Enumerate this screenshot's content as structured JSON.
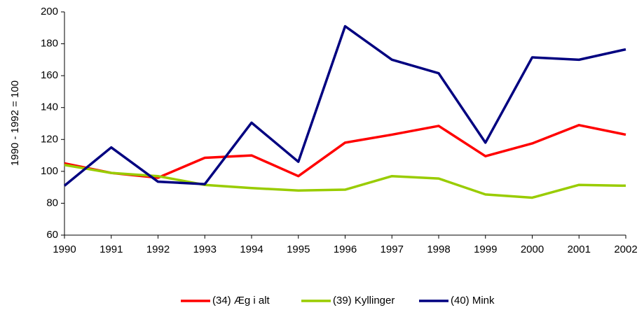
{
  "chart_data": {
    "type": "line",
    "y_label": "1990 - 1992 = 100",
    "x": [
      1990,
      1991,
      1992,
      1993,
      1994,
      1995,
      1996,
      1997,
      1998,
      1999,
      2000,
      2001,
      2002
    ],
    "series": [
      {
        "name": "(34) Æg i alt",
        "color": "#ff0000",
        "values": [
          105,
          99,
          96,
          108.5,
          110,
          97,
          118,
          123,
          128.5,
          109.5,
          117.5,
          129,
          123
        ]
      },
      {
        "name": "(39) Kyllinger",
        "color": "#99cc00",
        "values": [
          104,
          99,
          97,
          91.5,
          89.5,
          88,
          88.5,
          97,
          95.5,
          85.5,
          83.5,
          91.5,
          91
        ]
      },
      {
        "name": "(40) Mink",
        "color": "#000080",
        "values": [
          91,
          115,
          93.5,
          92,
          130.5,
          106,
          191,
          170,
          161.5,
          118,
          171.5,
          170,
          176.5
        ]
      }
    ],
    "xlim": [
      1990,
      2002
    ],
    "xticks": [
      1990,
      1991,
      1992,
      1993,
      1994,
      1995,
      1996,
      1997,
      1998,
      1999,
      2000,
      2001,
      2002
    ],
    "ylim": [
      60,
      200
    ],
    "yticks": [
      60,
      80,
      100,
      120,
      140,
      160,
      180,
      200
    ],
    "grid": false,
    "legend": "bottom"
  }
}
